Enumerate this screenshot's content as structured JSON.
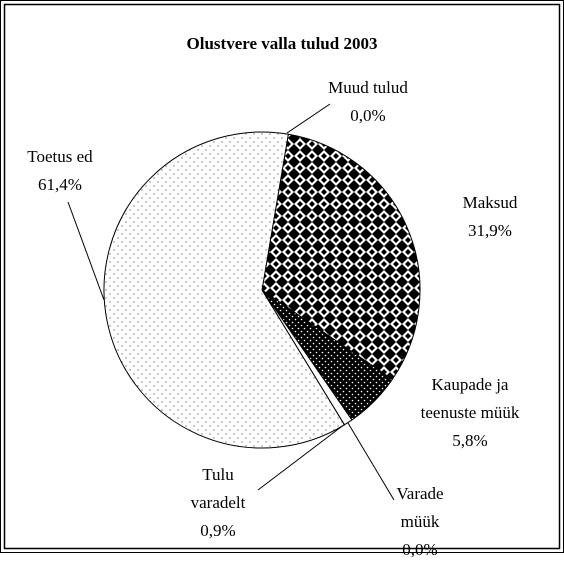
{
  "chart_data": {
    "type": "pie",
    "title": "Olustvere valla tulud 2003",
    "categories": [
      "Muud tulud",
      "Maksud",
      "Kaupade ja teenuste müük",
      "Varade müük",
      "Tulu varadelt",
      "Toetus ed"
    ],
    "values": [
      0.0,
      31.9,
      5.8,
      0.0,
      0.9,
      61.4
    ],
    "value_labels": [
      "0,0%",
      "31,9%",
      "5,8%",
      "0,0%",
      "0,9%",
      "61,4%"
    ]
  }
}
